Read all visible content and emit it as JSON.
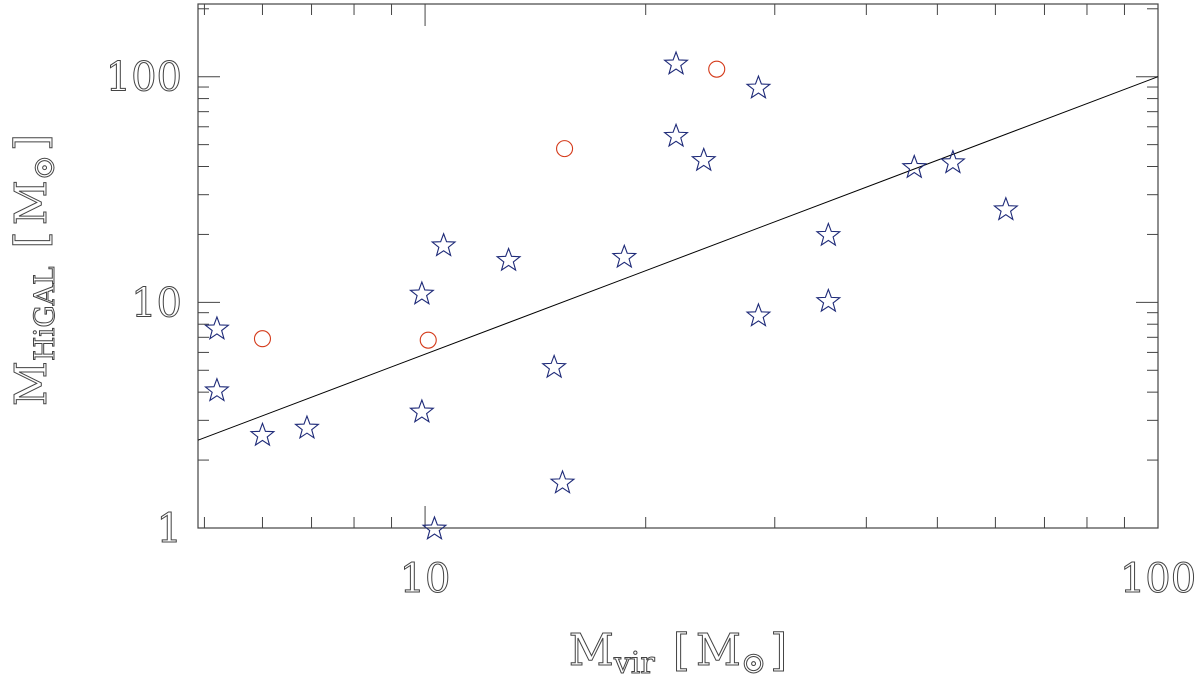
{
  "chart_data": {
    "type": "scatter",
    "xscale": "log",
    "yscale": "log",
    "xlim": [
      4.9,
      100
    ],
    "ylim": [
      1,
      210
    ],
    "grid": false,
    "legend": "none",
    "x_ticks": [
      10,
      100
    ],
    "x_tick_labels": [
      "10",
      "100"
    ],
    "y_ticks": [
      1,
      10,
      100
    ],
    "y_tick_labels": [
      "1",
      "10",
      "100"
    ],
    "xlabel": {
      "main": "M",
      "sub": "vir",
      "unit_open": "[",
      "unit": "M",
      "unit_close": "]"
    },
    "ylabel": {
      "main": "M",
      "sub": "HiGAL",
      "unit_open": "[",
      "unit": "M",
      "unit_close": "]"
    },
    "colors": {
      "stars": "#1e2a78",
      "circles": "#d43a1a",
      "line": "#000000",
      "axes": "#444444"
    },
    "series": [
      {
        "marker": "star-outline",
        "points": [
          {
            "x": 5.2,
            "y": 7.7
          },
          {
            "x": 5.2,
            "y": 4.1
          },
          {
            "x": 6.0,
            "y": 2.6
          },
          {
            "x": 6.9,
            "y": 2.8
          },
          {
            "x": 9.9,
            "y": 11.0
          },
          {
            "x": 9.9,
            "y": 3.3
          },
          {
            "x": 10.3,
            "y": 1.0
          },
          {
            "x": 10.6,
            "y": 18.0
          },
          {
            "x": 13.0,
            "y": 15.5
          },
          {
            "x": 15.0,
            "y": 5.2
          },
          {
            "x": 15.4,
            "y": 1.6
          },
          {
            "x": 18.7,
            "y": 16.0
          },
          {
            "x": 22.0,
            "y": 115
          },
          {
            "x": 22.0,
            "y": 55
          },
          {
            "x": 24.0,
            "y": 43
          },
          {
            "x": 28.5,
            "y": 90
          },
          {
            "x": 28.5,
            "y": 8.8
          },
          {
            "x": 35.5,
            "y": 20
          },
          {
            "x": 35.5,
            "y": 10.2
          },
          {
            "x": 46.5,
            "y": 40
          },
          {
            "x": 52.5,
            "y": 42
          },
          {
            "x": 62.0,
            "y": 26
          }
        ]
      },
      {
        "marker": "circle-outline",
        "points": [
          {
            "x": 6.0,
            "y": 6.9
          },
          {
            "x": 10.1,
            "y": 6.8
          },
          {
            "x": 15.5,
            "y": 48
          },
          {
            "x": 25.0,
            "y": 108
          }
        ]
      }
    ],
    "reference_line": {
      "x": [
        4.9,
        100
      ],
      "y": [
        2.45,
        100
      ]
    }
  }
}
